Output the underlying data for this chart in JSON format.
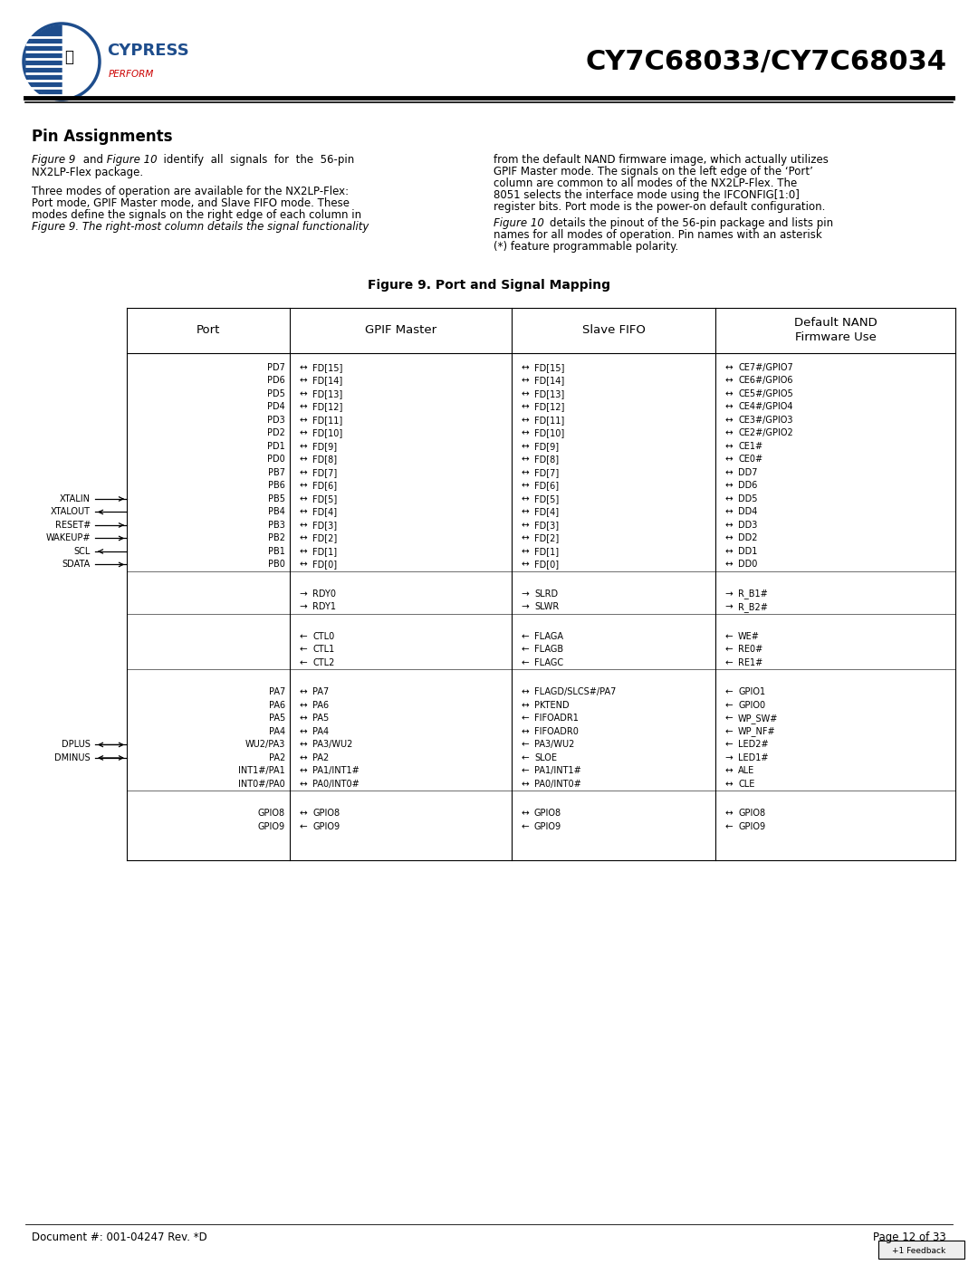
{
  "title": "CY7C68033/CY7C68034",
  "doc_number": "Document #: 001-04247 Rev. *D",
  "page": "Page 12 of 33",
  "section_title": "Pin Assignments",
  "bg_color": "#ffffff"
}
